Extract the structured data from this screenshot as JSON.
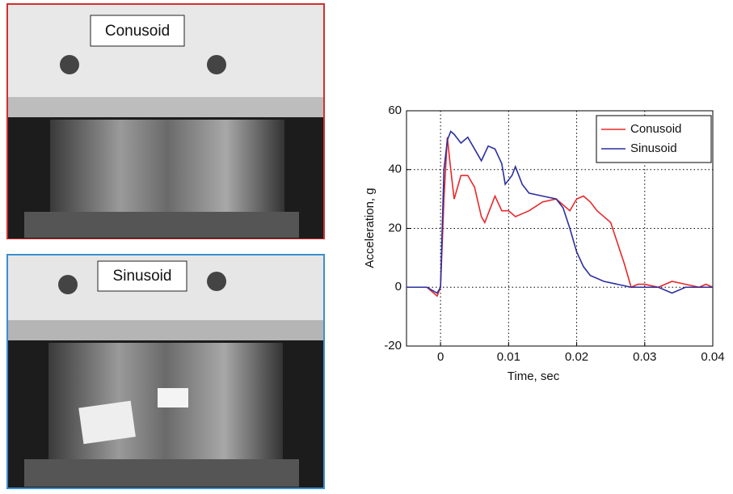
{
  "photos": [
    {
      "label": "Conusoid"
    },
    {
      "label": "Sinusoid"
    }
  ],
  "chart_data": {
    "type": "line",
    "xlabel": "Time, sec",
    "ylabel": "Acceleration, g",
    "xlim": [
      -0.005,
      0.04
    ],
    "xticks": [
      0,
      0.01,
      0.02,
      0.03,
      0.04
    ],
    "ylim": [
      -20,
      60
    ],
    "yticks": [
      -20,
      0,
      20,
      40,
      60
    ],
    "grid": true,
    "legend": "upper right",
    "series": [
      {
        "name": "Conusoid",
        "color": "#e8282b",
        "x": [
          -0.005,
          -0.002,
          -0.0005,
          0,
          0.0005,
          0.001,
          0.0015,
          0.002,
          0.003,
          0.004,
          0.005,
          0.006,
          0.0065,
          0.0075,
          0.008,
          0.009,
          0.01,
          0.011,
          0.013,
          0.015,
          0.017,
          0.019,
          0.02,
          0.021,
          0.022,
          0.023,
          0.024,
          0.025,
          0.026,
          0.027,
          0.028,
          0.029,
          0.03,
          0.032,
          0.034,
          0.036,
          0.038,
          0.039,
          0.04
        ],
        "values": [
          0,
          0,
          -3,
          0,
          30,
          51,
          40,
          30,
          38,
          38,
          34,
          24,
          22,
          28,
          31,
          26,
          26,
          24,
          26,
          29,
          30,
          26,
          30,
          31,
          29,
          26,
          24,
          22,
          15,
          8,
          0,
          1,
          1,
          0,
          2,
          1,
          0,
          1,
          0
        ]
      },
      {
        "name": "Sinusoid",
        "color": "#2b2f9e",
        "x": [
          -0.005,
          -0.002,
          -0.0005,
          0,
          0.0005,
          0.001,
          0.0015,
          0.002,
          0.003,
          0.004,
          0.005,
          0.006,
          0.007,
          0.008,
          0.009,
          0.0095,
          0.0105,
          0.011,
          0.012,
          0.013,
          0.015,
          0.017,
          0.018,
          0.019,
          0.02,
          0.021,
          0.022,
          0.024,
          0.026,
          0.028,
          0.03,
          0.032,
          0.034,
          0.036,
          0.038,
          0.04
        ],
        "values": [
          0,
          0,
          -2,
          0,
          40,
          50,
          53,
          52,
          49,
          51,
          47,
          43,
          48,
          47,
          42,
          35,
          38,
          41,
          35,
          32,
          31,
          30,
          27,
          20,
          12,
          7,
          4,
          2,
          1,
          0,
          0,
          0,
          -2,
          0,
          0,
          0
        ]
      }
    ]
  }
}
